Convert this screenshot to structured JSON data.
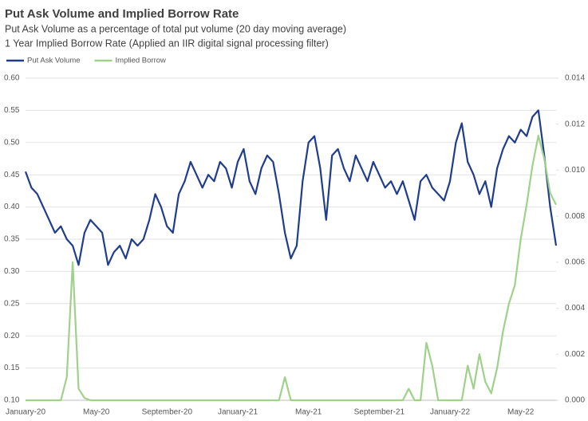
{
  "chart_data": {
    "type": "line",
    "title": "Put Ask Volume and Implied Borrow Rate",
    "subtitle": [
      "Put Ask Volume as a percentage of total put volume (20 day moving average)",
      "1 Year Implied Borrow Rate (Applied an IIR digital signal processing filter)"
    ],
    "categories": [
      "January-20",
      null,
      null,
      null,
      null,
      null,
      null,
      null,
      null,
      null,
      null,
      null,
      "May-20",
      null,
      null,
      null,
      null,
      null,
      null,
      null,
      null,
      null,
      null,
      null,
      "September-20",
      null,
      null,
      null,
      null,
      null,
      null,
      null,
      null,
      null,
      null,
      null,
      "January-21",
      null,
      null,
      null,
      null,
      null,
      null,
      null,
      null,
      null,
      null,
      null,
      "May-21",
      null,
      null,
      null,
      null,
      null,
      null,
      null,
      null,
      null,
      null,
      null,
      "September-21",
      null,
      null,
      null,
      null,
      null,
      null,
      null,
      null,
      null,
      null,
      null,
      "January-22",
      null,
      null,
      null,
      null,
      null,
      null,
      null,
      null,
      null,
      null,
      null,
      "May-22",
      null,
      null,
      null,
      null,
      null,
      null
    ],
    "series": [
      {
        "name": "Put Ask Volume",
        "color": "#1f3d8c",
        "axis": "y",
        "values": [
          0.455,
          0.43,
          0.42,
          0.4,
          0.38,
          0.36,
          0.37,
          0.35,
          0.34,
          0.31,
          0.36,
          0.38,
          0.37,
          0.36,
          0.31,
          0.33,
          0.34,
          0.32,
          0.35,
          0.34,
          0.35,
          0.38,
          0.42,
          0.4,
          0.37,
          0.36,
          0.42,
          0.44,
          0.47,
          0.45,
          0.43,
          0.45,
          0.44,
          0.47,
          0.46,
          0.43,
          0.47,
          0.49,
          0.44,
          0.42,
          0.46,
          0.48,
          0.47,
          0.42,
          0.36,
          0.32,
          0.34,
          0.44,
          0.5,
          0.51,
          0.46,
          0.38,
          0.48,
          0.49,
          0.46,
          0.44,
          0.48,
          0.46,
          0.44,
          0.47,
          0.45,
          0.43,
          0.44,
          0.42,
          0.44,
          0.41,
          0.38,
          0.44,
          0.45,
          0.43,
          0.42,
          0.41,
          0.44,
          0.5,
          0.53,
          0.47,
          0.45,
          0.42,
          0.44,
          0.4,
          0.46,
          0.49,
          0.51,
          0.5,
          0.52,
          0.51,
          0.54,
          0.55,
          0.48,
          0.4,
          0.34
        ]
      },
      {
        "name": "Implied Borrow",
        "color": "#9fd18b",
        "axis": "y2",
        "values": [
          0,
          0,
          0,
          0,
          0,
          0,
          0,
          0.001,
          0.006,
          0.0005,
          0.0001,
          0,
          0,
          0,
          0,
          0,
          0,
          0,
          0,
          0,
          0,
          0,
          0,
          0,
          0,
          0,
          0,
          0,
          0,
          0,
          0,
          0,
          0,
          0,
          0,
          0,
          0,
          0,
          0,
          0,
          0,
          0,
          0,
          0,
          0.001,
          0,
          0,
          0,
          0,
          0,
          0,
          0,
          0,
          0,
          0,
          0,
          0,
          0,
          0,
          0,
          0,
          0,
          0,
          0,
          0,
          0.0005,
          0,
          0,
          0.0025,
          0.0015,
          0,
          0,
          0,
          0,
          0,
          0.0015,
          0.0005,
          0.002,
          0.0008,
          0.0003,
          0.0014,
          0.003,
          0.0042,
          0.005,
          0.007,
          0.0085,
          0.0102,
          0.0115,
          0.0105,
          0.009,
          0.0085
        ]
      }
    ],
    "ylim": [
      0.1,
      0.6
    ],
    "yticks": [
      {
        "value": 0.1,
        "label": "0.10"
      },
      0.15,
      {
        "value": 0.2,
        "label": "0.20"
      },
      0.25,
      {
        "value": 0.3,
        "label": "0.30"
      },
      0.35,
      {
        "value": 0.4,
        "label": "0.40"
      },
      0.45,
      {
        "value": 0.5,
        "label": "0.50"
      },
      0.55,
      {
        "value": 0.6,
        "label": "0.60"
      }
    ],
    "y2lim": [
      0,
      0.014
    ],
    "y2ticks": [
      {
        "value": 0,
        "label": "0.000"
      },
      0.002,
      0.004,
      0.006,
      0.008,
      {
        "value": 0.01,
        "label": "0.010"
      },
      {
        "value": 0.012,
        "label": "0.012"
      },
      {
        "value": 0.014,
        "label": "0.014"
      }
    ],
    "grid": true,
    "legend": "top-left"
  }
}
